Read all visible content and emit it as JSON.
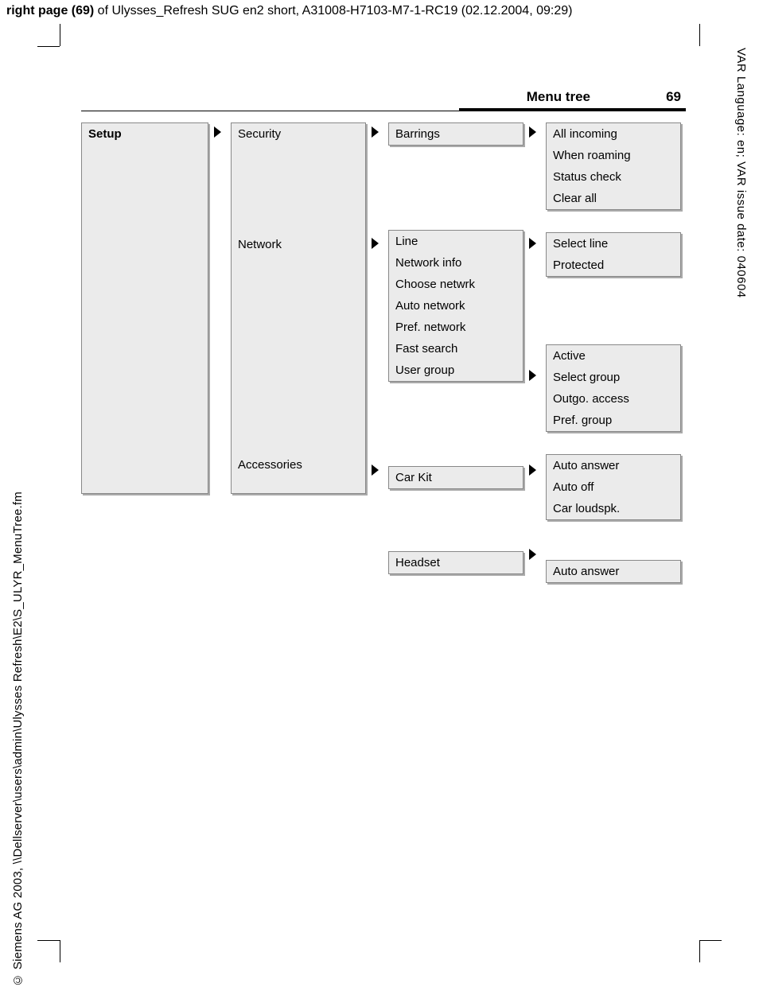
{
  "header": {
    "prefix_bold": "right page (69)",
    "rest": " of Ulysses_Refresh SUG en2 short, A31008-H7103-M7-1-RC19 (02.12.2004, 09:29)"
  },
  "right_margin": "VAR Language: en; VAR issue date: 040604",
  "left_margin": "© Siemens AG 2003, \\\\Dellserver\\users\\admin\\Ulysses Refresh\\E2\\S_ULYR_MenuTree.fm",
  "page_title": "Menu tree",
  "page_number": "69",
  "colors": {
    "box_bg": "#ebebeb",
    "box_border": "#888888",
    "box_shadow": "#aaaaaa",
    "rule": "#000000",
    "text": "#000000",
    "page_bg": "#ffffff"
  },
  "tree": {
    "level1": {
      "label": "Setup"
    },
    "level2": {
      "security": "Security",
      "network": "Network",
      "accessories": "Accessories"
    },
    "level3": {
      "barrings": [
        "Barrings"
      ],
      "network": [
        "Line",
        "Network info",
        "Choose netwrk",
        "Auto network",
        "Pref. network",
        "Fast search",
        "User group"
      ],
      "carkit": [
        "Car Kit"
      ],
      "headset": [
        "Headset"
      ]
    },
    "level4": {
      "barrings": [
        "All incoming",
        "When roaming",
        "Status check",
        "Clear all"
      ],
      "line": [
        "Select line",
        "Protected"
      ],
      "usergroup": [
        "Active",
        "Select group",
        "Outgo. access",
        "Pref. group"
      ],
      "carkit": [
        "Auto answer",
        "Auto off",
        "Car loudspk."
      ],
      "headset": [
        "Auto answer"
      ]
    }
  }
}
